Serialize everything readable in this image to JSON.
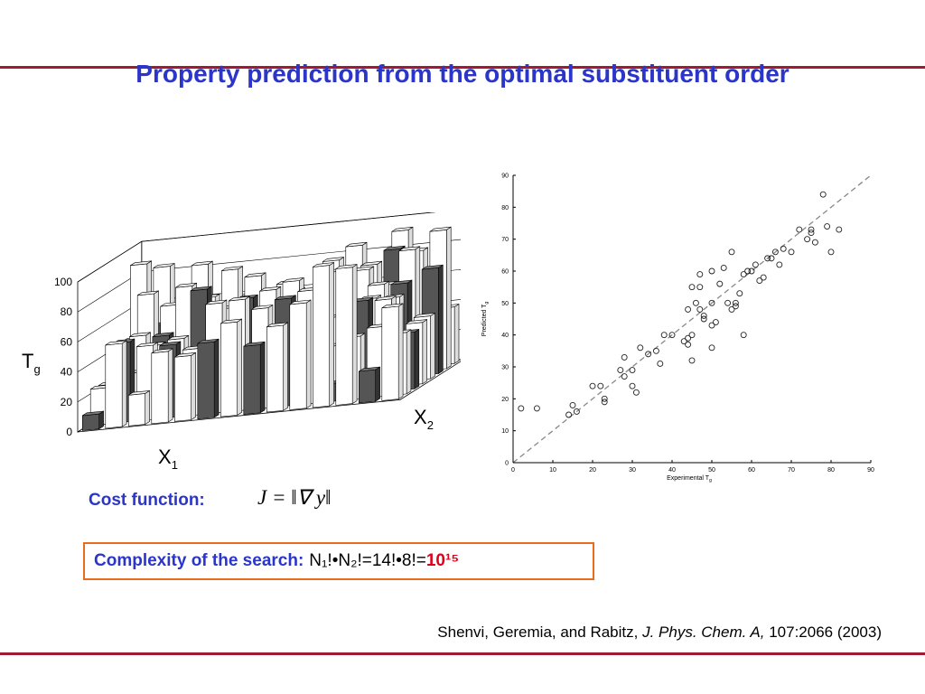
{
  "slide": {
    "title": "Property prediction from the optimal substituent order",
    "cost_label": "Cost function:",
    "cost_formula": "J = ‖∇ y‖",
    "complexity_label": "Complexity of the search:",
    "complexity_expr": "N₁!•N₂!=14!•8!=",
    "complexity_result": "10¹⁵",
    "citation": {
      "authors": "Shenvi, Geremia, and Rabitz, ",
      "journal": "J. Phys. Chem. A,",
      "ref": " 107:2066 (2003)"
    }
  },
  "colors": {
    "title": "#2b35c9",
    "rule": "#a01a33",
    "box_border": "#e86b1e",
    "result": "#e0001a"
  },
  "chart_data": [
    {
      "type": "bar",
      "subtype": "3d-bar",
      "zlabel": "Tg",
      "xlabel": "X1",
      "ylabel": "X2",
      "zlim": [
        0,
        100
      ],
      "z_ticks": [
        0,
        20,
        40,
        60,
        80,
        100
      ]
    },
    {
      "type": "scatter",
      "xlabel": "Experimental Tg",
      "ylabel": "Predicted Tg",
      "xlim": [
        0,
        90
      ],
      "ylim": [
        0,
        90
      ],
      "x_ticks": [
        0,
        10,
        20,
        30,
        40,
        50,
        60,
        70,
        80,
        90
      ],
      "y_ticks": [
        0,
        10,
        20,
        30,
        40,
        50,
        60,
        70,
        80,
        90
      ],
      "reference_line": "y = x (dashed)",
      "points": [
        [
          2,
          17
        ],
        [
          6,
          17
        ],
        [
          15,
          18
        ],
        [
          16,
          16
        ],
        [
          14,
          15
        ],
        [
          20,
          24
        ],
        [
          22,
          24
        ],
        [
          23,
          19
        ],
        [
          23,
          20
        ],
        [
          27,
          29
        ],
        [
          28,
          27
        ],
        [
          28,
          33
        ],
        [
          30,
          24
        ],
        [
          30,
          29
        ],
        [
          31,
          22
        ],
        [
          32,
          36
        ],
        [
          34,
          34
        ],
        [
          36,
          35
        ],
        [
          37,
          31
        ],
        [
          38,
          40
        ],
        [
          40,
          40
        ],
        [
          43,
          38
        ],
        [
          44,
          37
        ],
        [
          44,
          39
        ],
        [
          44,
          48
        ],
        [
          45,
          32
        ],
        [
          45,
          40
        ],
        [
          45,
          55
        ],
        [
          46,
          50
        ],
        [
          47,
          48
        ],
        [
          47,
          59
        ],
        [
          47,
          55
        ],
        [
          48,
          45
        ],
        [
          48,
          46
        ],
        [
          50,
          36
        ],
        [
          50,
          43
        ],
        [
          50,
          50
        ],
        [
          50,
          60
        ],
        [
          51,
          44
        ],
        [
          52,
          56
        ],
        [
          53,
          61
        ],
        [
          54,
          50
        ],
        [
          55,
          48
        ],
        [
          55,
          66
        ],
        [
          56,
          49
        ],
        [
          56,
          50
        ],
        [
          57,
          53
        ],
        [
          58,
          40
        ],
        [
          58,
          59
        ],
        [
          59,
          60
        ],
        [
          60,
          60
        ],
        [
          61,
          62
        ],
        [
          62,
          57
        ],
        [
          63,
          58
        ],
        [
          64,
          64
        ],
        [
          65,
          64
        ],
        [
          66,
          66
        ],
        [
          67,
          62
        ],
        [
          68,
          67
        ],
        [
          70,
          66
        ],
        [
          72,
          73
        ],
        [
          74,
          70
        ],
        [
          75,
          73
        ],
        [
          75,
          72
        ],
        [
          76,
          69
        ],
        [
          78,
          84
        ],
        [
          79,
          74
        ],
        [
          80,
          66
        ],
        [
          82,
          73
        ]
      ]
    }
  ]
}
